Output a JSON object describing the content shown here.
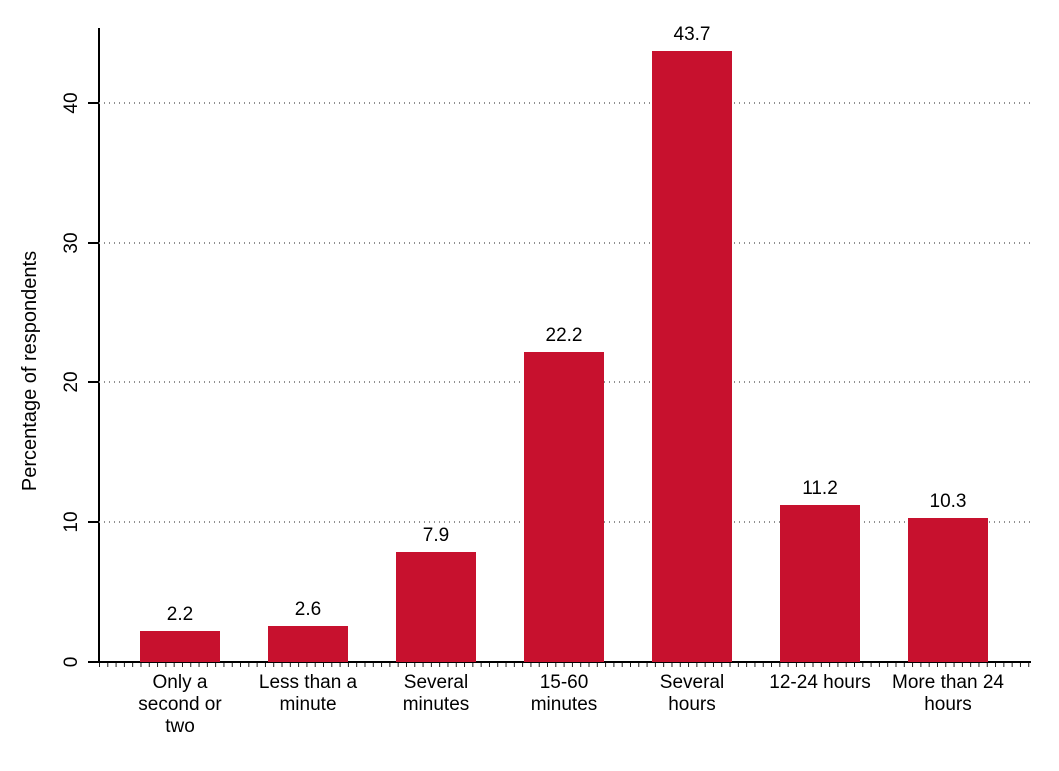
{
  "chart_data": {
    "type": "bar",
    "title": "",
    "xlabel": "",
    "ylabel": "Percentage of respondents",
    "categories": [
      "Only a\nsecond or\ntwo",
      "Less than a\nminute",
      "Several\nminutes",
      "15-60\nminutes",
      "Several\nhours",
      "12-24 hours",
      "More than 24\nhours"
    ],
    "values": [
      2.2,
      2.6,
      7.9,
      22.2,
      43.7,
      11.2,
      10.3
    ],
    "value_labels": [
      "2.2",
      "2.6",
      "7.9",
      "22.2",
      "43.7",
      "11.2",
      "10.3"
    ],
    "yticks": [
      0,
      10,
      20,
      30,
      40
    ],
    "ytick_labels": [
      "0",
      "10",
      "20",
      "30",
      "40"
    ],
    "ylim": [
      0,
      45.4
    ],
    "grid": "dotted horizontal gridlines at 10, 20, 30, 40, drawn behind bars",
    "legend": "none",
    "bar_color": "#c7112e",
    "axis_color": "#000000",
    "gridline_color": "#8f8f8f",
    "text_color": "#000000",
    "background_color": "#ffffff"
  }
}
